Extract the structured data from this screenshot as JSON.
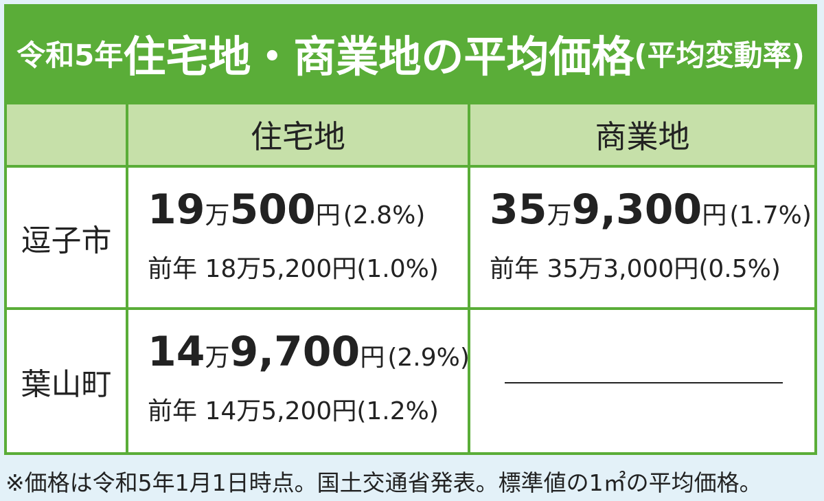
{
  "header": {
    "title": {
      "year": "令和5年",
      "main": "住宅地・商業地の平均価格",
      "sub": "(平均変動率)"
    }
  },
  "table": {
    "columns": [
      "住宅地",
      "商業地"
    ],
    "rows": [
      {
        "label": "逗子市",
        "cells": [
          {
            "price": [
              "19",
              "万",
              "500",
              "円"
            ],
            "rate": "(2.8%)",
            "previous": "前年 18万5,200円(1.0%)"
          },
          {
            "price": [
              "35",
              "万",
              "9,300",
              "円"
            ],
            "rate": "(1.7%)",
            "previous": "前年 35万3,000円(0.5%)"
          }
        ]
      },
      {
        "label": "葉山町",
        "cells": [
          {
            "price": [
              "14",
              "万",
              "9,700",
              "円"
            ],
            "rate": "(2.9%)",
            "previous": "前年 14万5,200円(1.2%)"
          }
        ]
      }
    ]
  },
  "footnote": "※価格は令和5年1月1日時点。国土交通省発表。標準値の1㎡の平均価格。"
}
